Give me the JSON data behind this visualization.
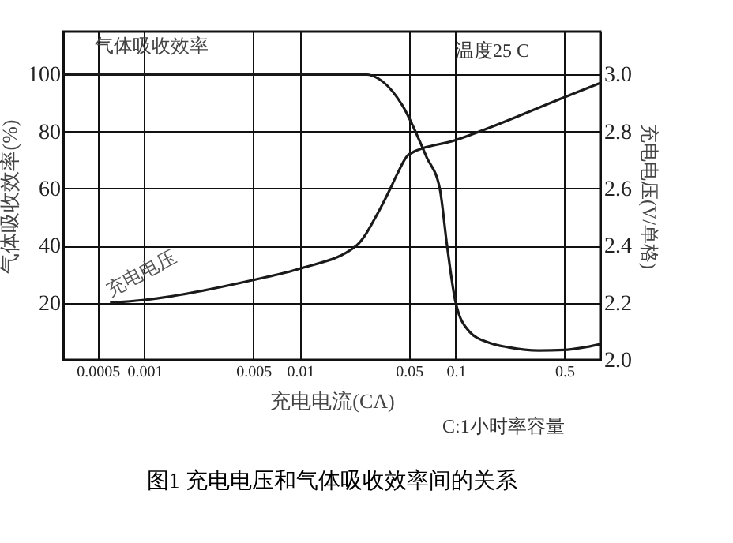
{
  "chart_data": {
    "type": "line",
    "title": "图1   充电电压和气体吸收效率间的关系",
    "xlabel": "充电电流(CA)",
    "ylabel": "气体吸收效率(%)",
    "y2label": "充电电压(V/单格)",
    "annotations": [
      "温度25 C",
      "C:1小时率容量"
    ],
    "log": "x",
    "grid": true,
    "marker": "none",
    "line_style": "solid",
    "xlim": [
      0.0003,
      0.85
    ],
    "xticks": [
      0.0005,
      0.001,
      0.005,
      0.01,
      0.05,
      0.1,
      0.5
    ],
    "ylim": [
      0,
      115
    ],
    "yticks": [
      20,
      40,
      60,
      80,
      100
    ],
    "y2lim": [
      2.0,
      3.15
    ],
    "y2ticks": [
      {
        "value": 2.0,
        "label": "2.0"
      },
      2.2,
      2.4,
      2.6,
      2.8,
      {
        "value": 3.0,
        "label": "3.0"
      }
    ],
    "series": [
      {
        "name": "气体吸收效率",
        "color": "#1a1a1a",
        "x": [
          0.0003,
          0.026,
          0.0456,
          0.065,
          0.079,
          0.088,
          0.1,
          0.122,
          0.164,
          0.219,
          0.342,
          0.5,
          0.85
        ],
        "values": [
          100,
          100,
          89,
          71,
          60,
          40,
          20,
          10,
          6,
          4.4,
          3.3,
          3.5,
          5.5
        ]
      },
      {
        "name": "充电电压",
        "color": "#1a1a1a",
        "axis": "y2",
        "x": [
          0.0006,
          0.001,
          0.005,
          0.01,
          0.023,
          0.032,
          0.038,
          0.042,
          0.05,
          0.1,
          0.5,
          0.85
        ],
        "values": [
          2.2,
          2.21,
          2.28,
          2.32,
          2.4,
          2.52,
          2.6,
          2.65,
          2.72,
          2.77,
          2.92,
          2.97
        ]
      }
    ]
  }
}
